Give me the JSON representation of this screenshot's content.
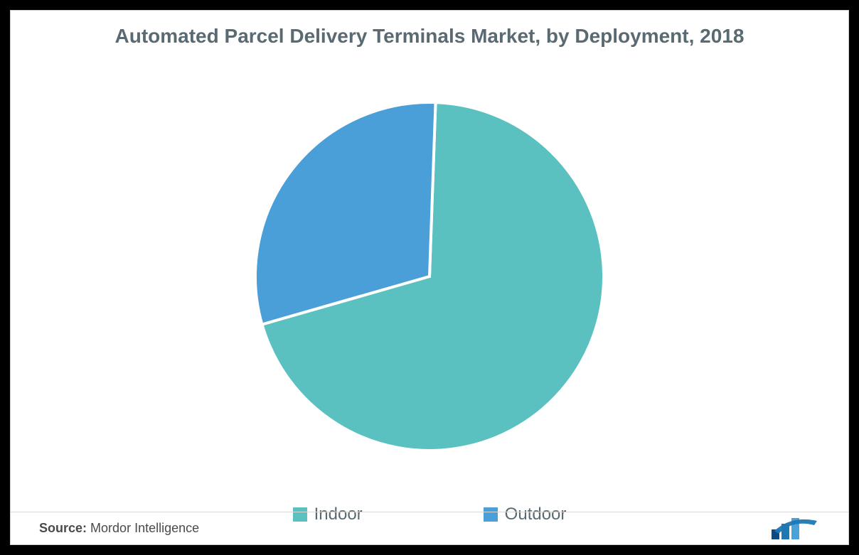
{
  "chart": {
    "type": "pie",
    "title": "Automated Parcel Delivery Terminals Market, by Deployment, 2018",
    "title_color": "#5a6a72",
    "title_fontsize": 28,
    "title_fontweight": 600,
    "background_color": "#ffffff",
    "outer_background": "#000000",
    "card_border_color": "#d0d0d0",
    "pie_radius": 245,
    "stroke_color": "#ffffff",
    "stroke_width": 4,
    "start_angle_deg": -88,
    "slices": [
      {
        "label": "Indoor",
        "value": 70,
        "color": "#5ac0c0"
      },
      {
        "label": "Outdoor",
        "value": 30,
        "color": "#4a9fd8"
      }
    ],
    "legend": {
      "position": "bottom",
      "fontsize": 24,
      "label_color": "#5a6a72",
      "swatch_size": 20,
      "gap": 170
    }
  },
  "footer": {
    "source_prefix": "Source:",
    "source_name": "Mordor Intelligence",
    "source_color": "#4a4a4a",
    "source_fontsize": 18,
    "divider_color": "#d8d8d8",
    "logo": {
      "name": "mordor-intelligence-logo",
      "bar_colors": [
        "#0b4a82",
        "#1f78b4",
        "#4aa3d8"
      ],
      "accent_color": "#1f78b4"
    }
  }
}
